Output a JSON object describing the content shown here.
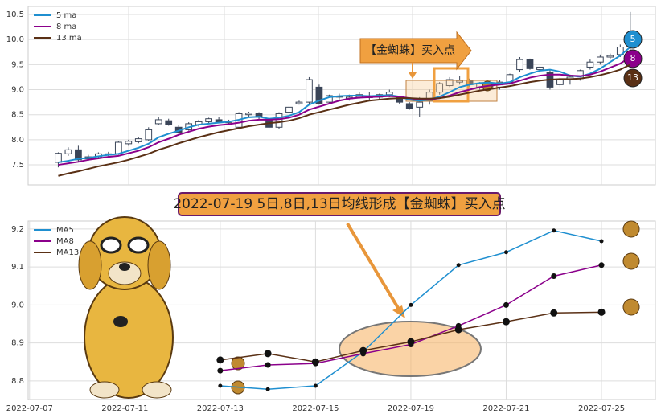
{
  "charts": [
    {
      "type": "candlestick",
      "open": [
        7.55,
        7.72,
        7.8,
        7.62,
        7.66,
        7.7,
        7.72,
        7.92,
        7.96,
        8.0,
        8.32,
        8.38,
        8.25,
        8.2,
        8.3,
        8.36,
        8.4,
        8.34,
        8.25,
        8.5,
        8.52,
        8.4,
        8.25,
        8.55,
        8.72,
        8.75,
        9.05,
        8.75,
        8.85,
        8.82,
        8.85,
        8.88,
        8.85,
        8.9,
        8.85,
        8.72,
        8.65,
        8.78,
        8.95,
        9.08,
        9.15,
        9.18,
        9.05,
        9.1,
        9.05,
        9.15,
        9.4,
        9.6,
        9.4,
        9.35,
        9.1,
        9.2,
        9.22,
        9.45,
        9.55,
        9.65,
        9.7,
        9.85
      ],
      "high": [
        7.75,
        7.85,
        7.88,
        7.7,
        7.75,
        7.76,
        7.98,
        8.0,
        8.05,
        8.25,
        8.45,
        8.42,
        8.3,
        8.35,
        8.4,
        8.44,
        8.45,
        8.4,
        8.55,
        8.56,
        8.55,
        8.45,
        8.55,
        8.68,
        8.78,
        9.25,
        9.1,
        8.9,
        8.92,
        8.9,
        8.95,
        8.95,
        8.92,
        9.0,
        8.88,
        8.75,
        8.85,
        9.0,
        9.15,
        9.25,
        9.28,
        9.22,
        9.15,
        9.18,
        9.2,
        9.32,
        9.65,
        9.62,
        9.48,
        9.4,
        9.25,
        9.3,
        9.4,
        9.6,
        9.7,
        9.72,
        9.9,
        10.55
      ],
      "low": [
        7.45,
        7.68,
        7.55,
        7.58,
        7.62,
        7.66,
        7.7,
        7.88,
        7.93,
        7.98,
        8.3,
        8.28,
        8.12,
        8.18,
        8.26,
        8.32,
        8.33,
        8.3,
        8.22,
        8.45,
        8.4,
        8.22,
        8.22,
        8.52,
        8.7,
        8.72,
        8.7,
        8.72,
        8.8,
        8.78,
        8.82,
        8.8,
        8.8,
        8.85,
        8.72,
        8.6,
        8.45,
        8.7,
        8.9,
        9.05,
        9.1,
        9.05,
        9.0,
        9.0,
        9.0,
        9.1,
        9.35,
        9.4,
        9.3,
        9.0,
        9.05,
        9.1,
        9.18,
        9.4,
        9.5,
        9.6,
        9.65,
        9.8
      ],
      "close": [
        7.73,
        7.8,
        7.6,
        7.66,
        7.72,
        7.72,
        7.95,
        7.97,
        8.02,
        8.2,
        8.4,
        8.3,
        8.15,
        8.32,
        8.36,
        8.42,
        8.35,
        8.37,
        8.52,
        8.53,
        8.45,
        8.25,
        8.52,
        8.65,
        8.75,
        9.2,
        8.72,
        8.88,
        8.87,
        8.85,
        8.9,
        8.84,
        8.9,
        8.95,
        8.75,
        8.62,
        8.75,
        8.95,
        9.12,
        9.2,
        9.18,
        9.1,
        9.12,
        9.05,
        9.15,
        9.3,
        9.6,
        9.42,
        9.45,
        9.05,
        9.2,
        9.25,
        9.38,
        9.55,
        9.65,
        9.68,
        9.85,
        10.05
      ],
      "series": [
        {
          "name": "5 ma",
          "badge": "5",
          "color": "#1f8fd0",
          "values": [
            7.55,
            7.58,
            7.62,
            7.64,
            7.67,
            7.7,
            7.72,
            7.78,
            7.84,
            7.92,
            8.05,
            8.12,
            8.18,
            8.25,
            8.3,
            8.32,
            8.34,
            8.36,
            8.4,
            8.45,
            8.46,
            8.42,
            8.44,
            8.48,
            8.55,
            8.7,
            8.78,
            8.85,
            8.87,
            8.88,
            8.88,
            8.87,
            8.88,
            8.89,
            8.86,
            8.8,
            8.78,
            8.8,
            8.86,
            8.95,
            9.05,
            9.1,
            9.13,
            9.14,
            9.12,
            9.15,
            9.25,
            9.32,
            9.38,
            9.4,
            9.36,
            9.28,
            9.26,
            9.32,
            9.42,
            9.55,
            9.68,
            9.85
          ]
        },
        {
          "name": "8 ma",
          "badge": "8",
          "color": "#8b008b",
          "values": [
            7.5,
            7.53,
            7.56,
            7.6,
            7.63,
            7.66,
            7.68,
            7.73,
            7.78,
            7.85,
            7.95,
            8.02,
            8.1,
            8.16,
            8.22,
            8.26,
            8.29,
            8.31,
            8.34,
            8.38,
            8.4,
            8.4,
            8.41,
            8.44,
            8.5,
            8.6,
            8.66,
            8.72,
            8.78,
            8.82,
            8.84,
            8.85,
            8.86,
            8.87,
            8.86,
            8.83,
            8.8,
            8.8,
            8.83,
            8.88,
            8.95,
            9.0,
            9.05,
            9.08,
            9.1,
            9.12,
            9.18,
            9.24,
            9.28,
            9.3,
            9.3,
            9.28,
            9.27,
            9.3,
            9.36,
            9.44,
            9.52,
            9.65
          ]
        },
        {
          "name": "13 ma",
          "badge": "13",
          "color": "#5a3015",
          "values": [
            7.28,
            7.33,
            7.37,
            7.42,
            7.47,
            7.51,
            7.55,
            7.6,
            7.66,
            7.72,
            7.8,
            7.86,
            7.93,
            7.99,
            8.05,
            8.1,
            8.15,
            8.19,
            8.23,
            8.27,
            8.3,
            8.33,
            8.35,
            8.38,
            8.43,
            8.5,
            8.55,
            8.6,
            8.65,
            8.7,
            8.74,
            8.78,
            8.8,
            8.82,
            8.83,
            8.83,
            8.82,
            8.82,
            8.83,
            8.86,
            8.9,
            8.94,
            8.98,
            9.01,
            9.04,
            9.07,
            9.11,
            9.15,
            9.18,
            9.2,
            9.21,
            9.21,
            9.22,
            9.25,
            9.29,
            9.34,
            9.4,
            9.5
          ]
        }
      ],
      "annotation": "【金蜘蛛】买入点",
      "ylim": [
        7.1,
        10.66
      ],
      "yticks": [
        7.5,
        {
          "value": 8,
          "label": "8.0"
        },
        8.5,
        {
          "value": 9,
          "label": "9.0"
        },
        9.5,
        {
          "value": 10,
          "label": "10.0"
        },
        10.5
      ],
      "grid": true
    },
    {
      "type": "line",
      "title": "2022-07-19 5日,8日,13日均线形成【金蜘蛛】买入点",
      "x": [
        4,
        5,
        6,
        7,
        8,
        9,
        10,
        11,
        12
      ],
      "series": [
        {
          "name": "MA5",
          "color": "#1f8fd0",
          "values": [
            8.787,
            8.778,
            8.787,
            8.877,
            9.0,
            9.105,
            9.139,
            9.196,
            9.168
          ]
        },
        {
          "name": "MA8",
          "color": "#8b008b",
          "values": [
            8.827,
            8.842,
            8.846,
            8.872,
            8.896,
            8.945,
            9.0,
            9.076,
            9.105
          ]
        },
        {
          "name": "MA13",
          "color": "#5a3015",
          "values": [
            8.855,
            8.872,
            8.85,
            8.88,
            8.903,
            8.935,
            8.956,
            8.979,
            8.981
          ]
        }
      ],
      "xlim": [
        -0.03,
        13.13
      ],
      "xticks": [
        {
          "value": 0,
          "label": "2022-07-07"
        },
        {
          "value": 2,
          "label": "2022-07-11"
        },
        {
          "value": 4,
          "label": "2022-07-13"
        },
        {
          "value": 6,
          "label": "2022-07-15"
        },
        {
          "value": 8,
          "label": "2022-07-19"
        },
        {
          "value": 10,
          "label": "2022-07-21"
        },
        {
          "value": 12,
          "label": "2022-07-25"
        }
      ],
      "ylim": [
        8.751,
        9.221
      ],
      "yticks": [
        8.8,
        8.9,
        {
          "value": 9,
          "label": "9.0"
        },
        9.1,
        9.2
      ],
      "grid": true
    }
  ]
}
